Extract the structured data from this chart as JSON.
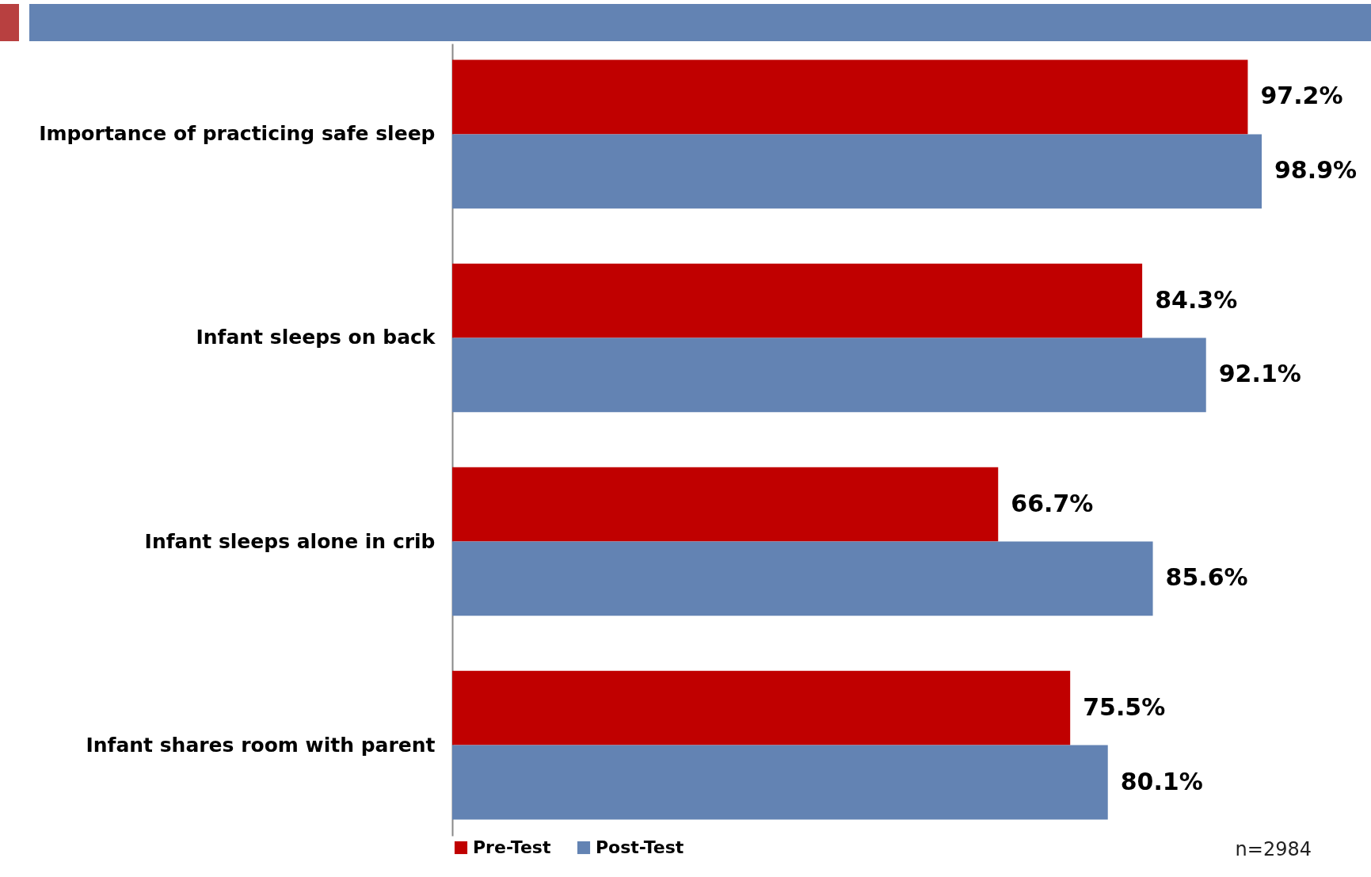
{
  "chart_data": {
    "type": "bar",
    "orientation": "horizontal",
    "categories": [
      "Importance of practicing safe sleep",
      "Infant sleeps on back",
      "Infant sleeps alone in crib",
      "Infant shares room with parent"
    ],
    "series": [
      {
        "name": "Pre-Test",
        "color": "#c00000",
        "values": [
          97.2,
          84.3,
          66.7,
          75.5
        ],
        "value_labels": [
          "97.2%",
          "84.3%",
          "66.7%",
          "75.5%"
        ]
      },
      {
        "name": "Post-Test",
        "color": "#6383b3",
        "values": [
          98.9,
          92.1,
          85.6,
          80.1
        ],
        "value_labels": [
          "98.9%",
          "92.1%",
          "85.6%",
          "80.1%"
        ]
      }
    ],
    "legend": "bottom",
    "tick_labels": "y",
    "annotations": [
      "n=2984"
    ]
  }
}
